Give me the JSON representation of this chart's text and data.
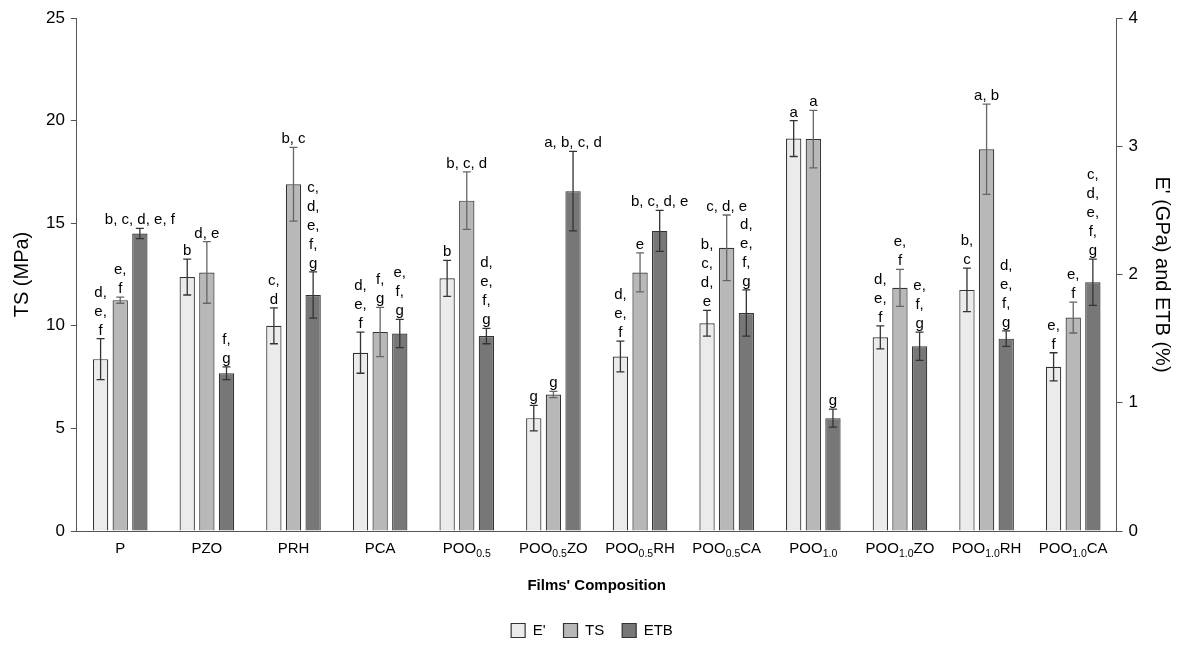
{
  "chart_data": {
    "type": "bar",
    "categories": [
      "P",
      "PZO",
      "PRH",
      "PCA",
      "POO$_{0.5}$",
      "POO$_{0.5}$ZO",
      "POO$_{0.5}$RH",
      "POO$_{0.5}$CA",
      "POO$_{1.0}$",
      "POO$_{1.0}$ZO",
      "POO$_{1.0}$RH",
      "POO$_{1.0}$CA"
    ],
    "xlabel": "Films' Composition",
    "ylabel": "TS (MPa)",
    "y2label": "E' (GPa) and ETB (%)",
    "ylim": [
      0,
      25
    ],
    "yticks": [
      0,
      5,
      10,
      15,
      20,
      25
    ],
    "y2lim": [
      0,
      4
    ],
    "y2ticks": [
      0,
      1,
      2,
      3,
      4
    ],
    "legend": "bottom",
    "grid": false,
    "series": [
      {
        "name": "E'",
        "color": "#ebebeb",
        "axis": "y2",
        "values": [
          1.34,
          1.98,
          1.6,
          1.39,
          1.97,
          0.88,
          1.36,
          1.62,
          3.06,
          1.51,
          1.88,
          1.28
        ],
        "errors": [
          0.16,
          0.14,
          0.14,
          0.16,
          0.14,
          0.1,
          0.12,
          0.1,
          0.14,
          0.09,
          0.17,
          0.11
        ],
        "value_labels": [
          "d,\ne,\nf",
          "b",
          "c,\nd",
          "d,\ne,\nf",
          "b",
          "g",
          "d,\ne,\nf",
          "b,\nc,\nd,\ne",
          "a",
          "d,\ne,\nf",
          "b,\nc",
          "e,\nf"
        ]
      },
      {
        "name": "TS",
        "color": "#b8b8b8",
        "values": [
          11.25,
          12.6,
          16.9,
          9.7,
          16.1,
          6.65,
          12.6,
          13.8,
          19.1,
          11.85,
          18.6,
          10.4
        ],
        "errors": [
          0.15,
          1.5,
          1.8,
          1.2,
          1.4,
          0.15,
          0.95,
          1.6,
          1.4,
          0.9,
          2.2,
          0.75
        ],
        "value_labels": [
          "e,\nf",
          "d, e",
          "b, c",
          "f,\ng",
          "b, c, d",
          "g",
          "e",
          "c, d, e",
          "a",
          "e,\nf",
          "a, b",
          "e,\nf"
        ]
      },
      {
        "name": "ETB",
        "color": "#777777",
        "axis": "y2",
        "values": [
          2.32,
          1.23,
          1.84,
          1.54,
          1.52,
          2.65,
          2.34,
          1.7,
          0.88,
          1.44,
          1.5,
          1.94
        ],
        "errors": [
          0.04,
          0.05,
          0.18,
          0.11,
          0.06,
          0.31,
          0.16,
          0.18,
          0.07,
          0.11,
          0.06,
          0.18
        ],
        "value_labels": [
          "b, c, d, e, f",
          "f,\ng",
          "c,\nd,\ne,\nf,\ng",
          "e,\nf,\ng",
          "d,\ne,\nf,\ng",
          "a, b, c, d",
          "b, c, d, e",
          "d,\ne,\nf,\ng",
          "g",
          "e,\nf,\ng",
          "d,\ne,\nf,\ng",
          "c,\nd,\ne,\nf,\ng"
        ]
      }
    ]
  }
}
